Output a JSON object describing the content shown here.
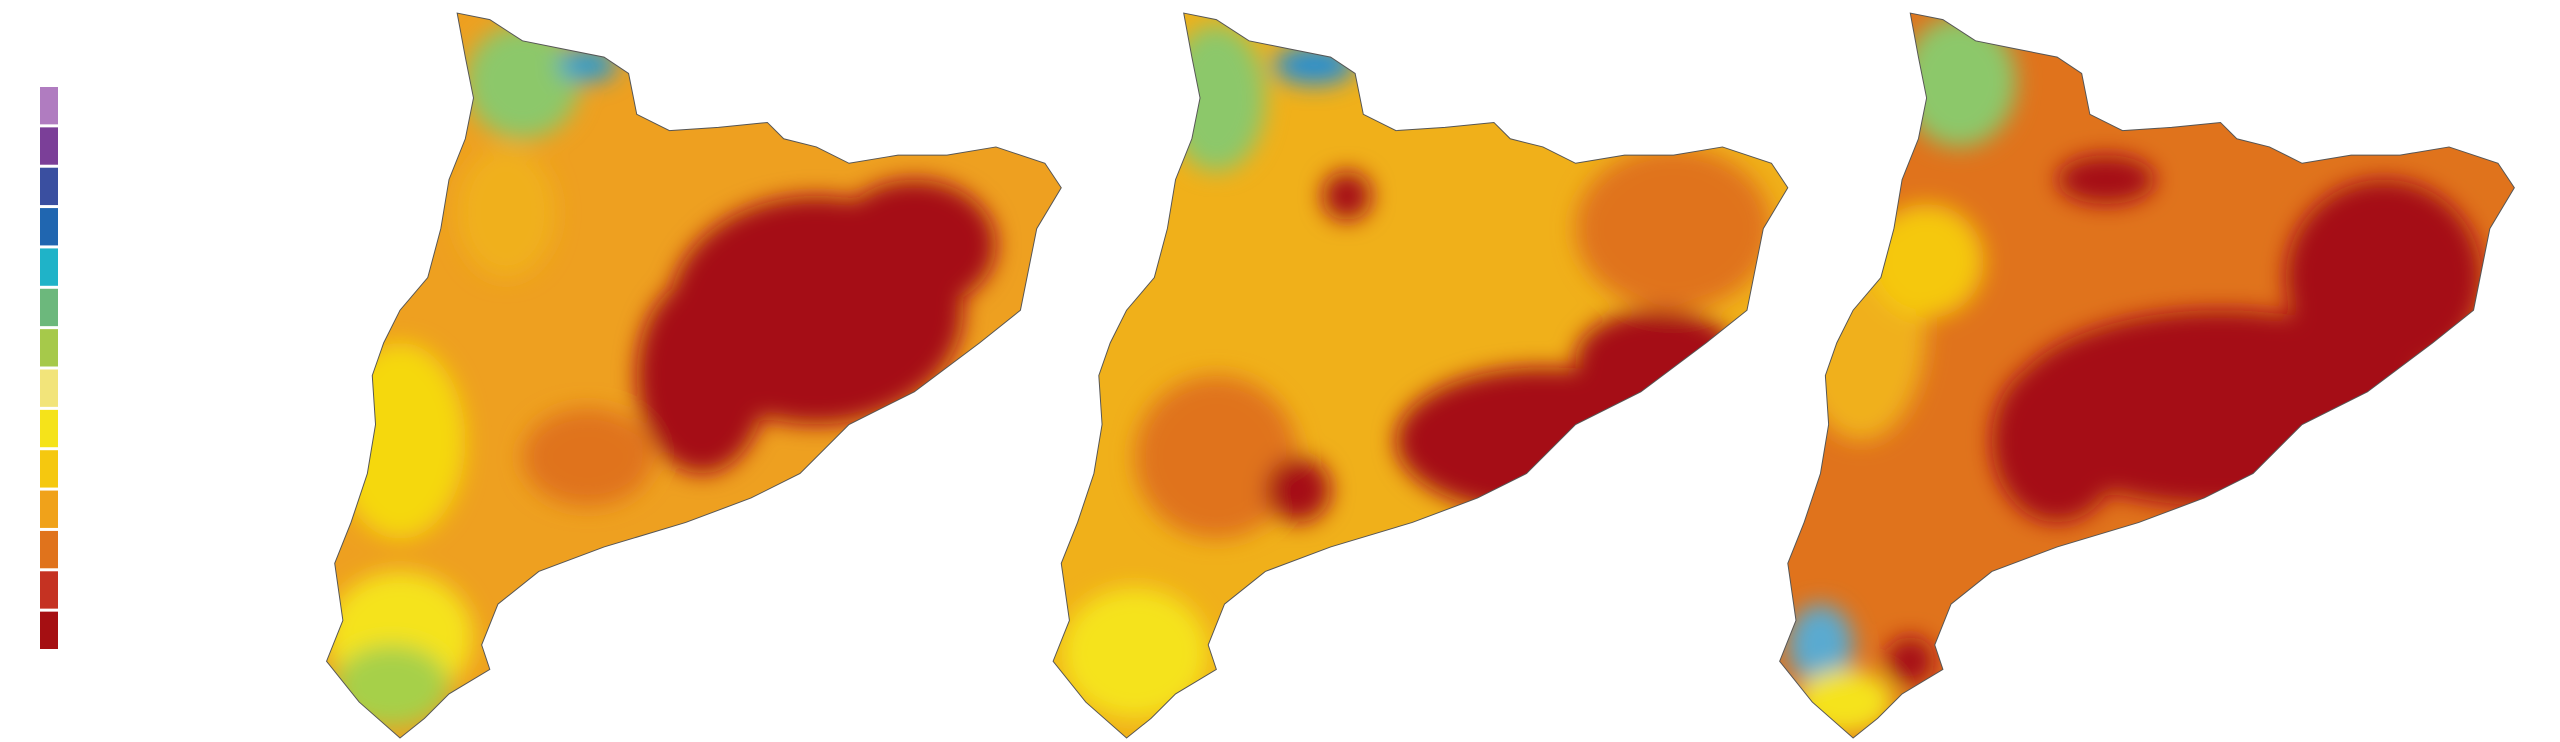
{
  "legend": {
    "colors": [
      "#b07cc0",
      "#7b3f98",
      "#3a4fa0",
      "#2066b0",
      "#1fb3c8",
      "#6cb87c",
      "#a6c94a",
      "#f2e47a",
      "#f5e31a",
      "#f5c80f",
      "#f0a21a",
      "#e0731c",
      "#c53222",
      "#a50f12"
    ]
  }
}
